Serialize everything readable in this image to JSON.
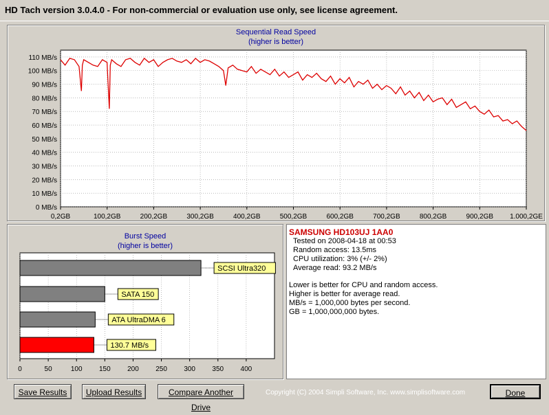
{
  "window": {
    "title": "HD Tach version 3.0.4.0  - For non-commercial or evaluation use only, see license agreement."
  },
  "colors": {
    "line": "#dd0000",
    "grid": "#909090",
    "bar_gray": "#808080",
    "bar_red": "#ff0000",
    "label_bg": "#ffff99",
    "title_blue": "#0000a0"
  },
  "chart_data": [
    {
      "type": "line",
      "title": "Sequential Read Speed",
      "subtitle": "(higher is better)",
      "yticks": [
        "0 MB/s",
        "10 MB/s",
        "20 MB/s",
        "30 MB/s",
        "40 MB/s",
        "50 MB/s",
        "60 MB/s",
        "70 MB/s",
        "80 MB/s",
        "90 MB/s",
        "100 MB/s",
        "110 MB/s"
      ],
      "xticks": [
        "0,2GB",
        "100,2GB",
        "200,2GB",
        "300,2GB",
        "400,2GB",
        "500,2GB",
        "600,2GB",
        "700,2GB",
        "800,2GB",
        "900,2GB",
        "1.000,2GE"
      ],
      "ylim": [
        0,
        115
      ],
      "xlim": [
        0.2,
        1000.2
      ],
      "grid": true,
      "series": [
        {
          "x": [
            0.2,
            10,
            20,
            30,
            40,
            45,
            47,
            50,
            60,
            70,
            80,
            90,
            100,
            105,
            107,
            110,
            120,
            130,
            140,
            150,
            160,
            170,
            180,
            190,
            200,
            210,
            220,
            230,
            240,
            250,
            260,
            270,
            280,
            290,
            300,
            310,
            320,
            330,
            340,
            350,
            355,
            360,
            370,
            380,
            390,
            400,
            410,
            420,
            430,
            440,
            450,
            460,
            470,
            480,
            490,
            500,
            510,
            520,
            530,
            540,
            550,
            560,
            570,
            580,
            590,
            600,
            610,
            620,
            630,
            640,
            650,
            660,
            670,
            680,
            690,
            700,
            710,
            720,
            730,
            740,
            750,
            760,
            770,
            780,
            790,
            800,
            810,
            820,
            830,
            840,
            850,
            860,
            870,
            880,
            890,
            900,
            910,
            920,
            930,
            940,
            950,
            960,
            970,
            980,
            990,
            1000.2
          ],
          "y": [
            108,
            104,
            109,
            108,
            103,
            85,
            104,
            108,
            106,
            104,
            103,
            108,
            106,
            72,
            104,
            108,
            105,
            103,
            108,
            109,
            106,
            104,
            109,
            106,
            108,
            103,
            106,
            108,
            109,
            107,
            106,
            108,
            105,
            109,
            106,
            108,
            107,
            105,
            103,
            100,
            89,
            102,
            104,
            101,
            100,
            99,
            103,
            98,
            101,
            99,
            97,
            101,
            96,
            99,
            95,
            97,
            99,
            93,
            97,
            95,
            98,
            94,
            92,
            96,
            90,
            94,
            91,
            95,
            88,
            92,
            90,
            93,
            87,
            90,
            86,
            89,
            87,
            83,
            88,
            82,
            85,
            80,
            84,
            78,
            82,
            77,
            79,
            80,
            75,
            79,
            73,
            75,
            77,
            72,
            74,
            70,
            68,
            71,
            66,
            67,
            63,
            64,
            61,
            63,
            59,
            56
          ]
        }
      ]
    },
    {
      "type": "bar",
      "title": "Burst Speed",
      "subtitle": "(higher is better)",
      "categories": [
        "SCSI Ultra320",
        "SATA 150",
        "ATA UltraDMA 6",
        "130.7 MB/s"
      ],
      "values": [
        320,
        150,
        133,
        130.7
      ],
      "xticks": [
        "0",
        "50",
        "100",
        "150",
        "200",
        "250",
        "300",
        "350",
        "400"
      ],
      "xlim": [
        0,
        450
      ],
      "grid": true
    }
  ],
  "info": {
    "drive": "SAMSUNG HD103UJ 1AA0",
    "tested": "Tested on 2008-04-18 at 00:53",
    "random": "Random access: 13.5ms",
    "cpu": "CPU utilization: 3% (+/- 2%)",
    "avg": "Average read: 93.2 MB/s",
    "note1": "Lower is better for CPU and random access.",
    "note2": "Higher is better for average read.",
    "note3": "MB/s = 1,000,000 bytes per second.",
    "note4": "GB = 1,000,000,000 bytes."
  },
  "buttons": {
    "save": "Save Results",
    "upload": "Upload Results",
    "compare": "Compare Another Drive",
    "done": "Done"
  },
  "footer": {
    "copyright": "Copyright (C) 2004 Simpli Software, Inc. www.simplisoftware.com"
  }
}
